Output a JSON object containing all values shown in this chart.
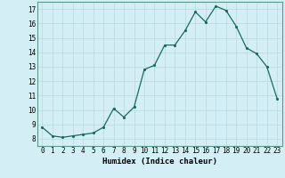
{
  "x": [
    0,
    1,
    2,
    3,
    4,
    5,
    6,
    7,
    8,
    9,
    10,
    11,
    12,
    13,
    14,
    15,
    16,
    17,
    18,
    19,
    20,
    21,
    22,
    23
  ],
  "y": [
    8.8,
    8.2,
    8.1,
    8.2,
    8.3,
    8.4,
    8.8,
    10.1,
    9.5,
    10.2,
    12.8,
    13.1,
    14.5,
    14.5,
    15.5,
    16.8,
    16.1,
    17.2,
    16.9,
    15.8,
    14.3,
    13.9,
    13.0,
    10.8
  ],
  "xlabel": "Humidex (Indice chaleur)",
  "xlim": [
    -0.5,
    23.5
  ],
  "ylim": [
    7.5,
    17.5
  ],
  "yticks": [
    8,
    9,
    10,
    11,
    12,
    13,
    14,
    15,
    16,
    17
  ],
  "xticks": [
    0,
    1,
    2,
    3,
    4,
    5,
    6,
    7,
    8,
    9,
    10,
    11,
    12,
    13,
    14,
    15,
    16,
    17,
    18,
    19,
    20,
    21,
    22,
    23
  ],
  "line_color": "#1a6b5a",
  "marker": ".",
  "bg_color": "#d4eef5",
  "grid_color": "#b8d8e0",
  "label_fontsize": 6.5,
  "tick_fontsize": 5.5
}
